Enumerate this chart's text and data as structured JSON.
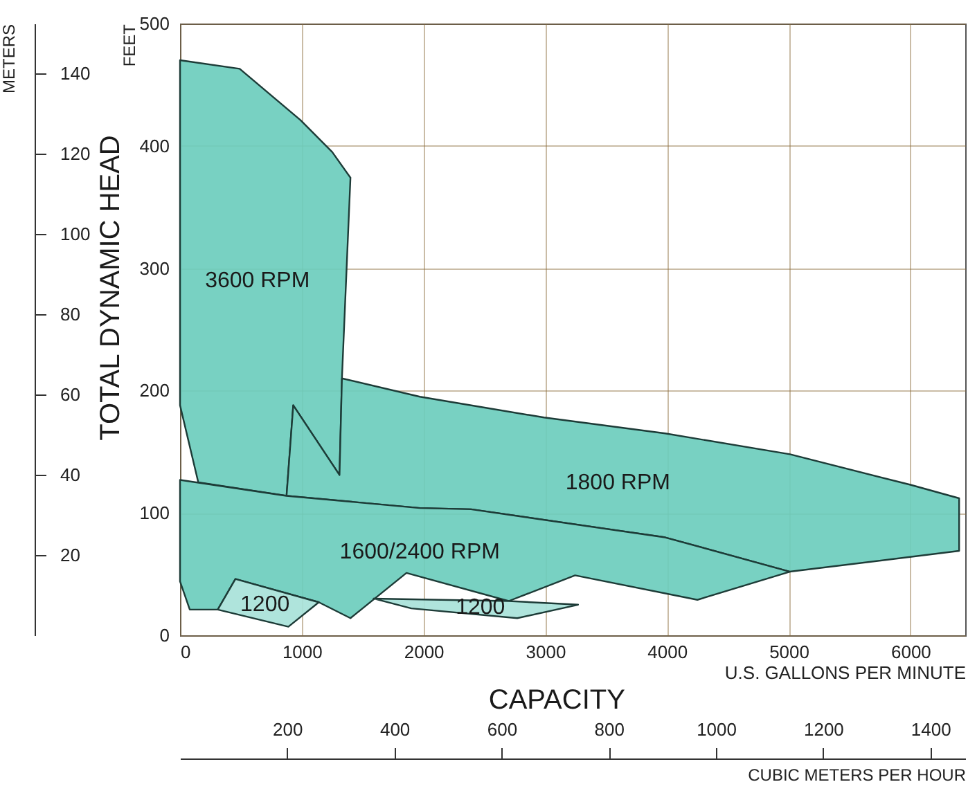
{
  "chart_data": {
    "type": "area",
    "xlabel": "U.S. GALLONS PER MINUTE",
    "ylabel": "FEET",
    "y2label": "METERS",
    "x2label": "CUBIC METERS PER HOUR",
    "annotations": [
      "TOTAL DYNAMIC HEAD",
      "CAPACITY"
    ],
    "xlim": [
      0,
      6450
    ],
    "xticks": [
      0,
      1000,
      2000,
      3000,
      4000,
      5000,
      6000
    ],
    "x2lim": [
      0,
      1465
    ],
    "x2ticks": [
      200,
      400,
      600,
      800,
      1000,
      1200,
      1400
    ],
    "ylim": [
      0,
      500
    ],
    "yticks": [
      0,
      100,
      200,
      300,
      400,
      500
    ],
    "y2lim": [
      0,
      152.4
    ],
    "y2ticks": [
      20,
      40,
      60,
      80,
      100,
      120,
      140
    ],
    "grid": true,
    "series": [
      {
        "name": "3600 RPM",
        "color": "#6ccdbd",
        "x": [
          0,
          490,
          990,
          1250,
          1400,
          1330,
          1310,
          930,
          875,
          150,
          0
        ],
        "values": [
          470,
          463,
          421,
          395,
          374,
          210,
          131,
          188,
          114,
          125,
          188
        ]
      },
      {
        "name": "1800 RPM",
        "color": "#6ccdbd",
        "x": [
          1330,
          1970,
          2990,
          3985,
          5010,
          6000,
          6400,
          6400,
          5010,
          3985,
          2390,
          1970,
          875,
          930,
          1310
        ],
        "values": [
          210,
          195,
          178,
          165,
          148,
          123,
          112,
          69,
          52,
          80,
          103,
          104,
          114,
          188,
          131
        ]
      },
      {
        "name": "1600/2400 RPM",
        "color": "#6ccdbd",
        "x": [
          0,
          875,
          1970,
          2390,
          3985,
          5010,
          4250,
          3245,
          2700,
          1860,
          1400,
          1140,
          455,
          310,
          80,
          0
        ],
        "values": [
          127,
          114,
          104,
          103,
          80,
          52,
          29,
          49,
          28,
          51,
          14,
          27,
          46,
          21,
          21,
          44
        ]
      },
      {
        "name": "1200",
        "color": "#a8e2d9",
        "x": [
          310,
          455,
          1140,
          890
        ],
        "values": [
          21,
          46,
          27,
          7
        ]
      },
      {
        "name": "1200",
        "color": "#a8e2d9",
        "x": [
          1590,
          2700,
          3270,
          2770,
          1900
        ],
        "values": [
          30,
          28,
          25,
          14,
          22
        ]
      }
    ]
  }
}
